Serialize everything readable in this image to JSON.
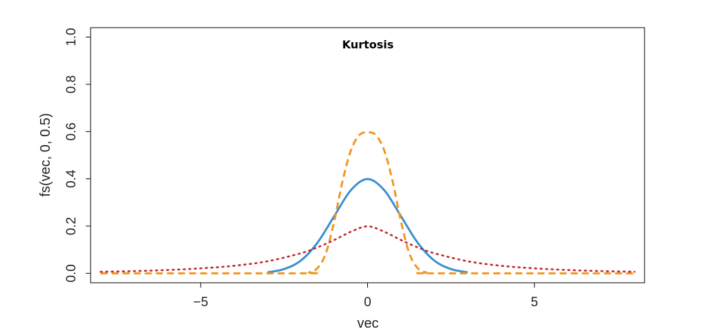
{
  "chart_data": {
    "type": "line",
    "title": "Kurtosis",
    "xlabel": "vec",
    "ylabel": "fs(vec, 0, 0.5)",
    "xlim": [
      -8.3,
      8.3
    ],
    "ylim": [
      -0.04,
      1.04
    ],
    "xticks": [
      -5,
      0,
      5
    ],
    "xtick_labels": [
      "−5",
      "0",
      "5"
    ],
    "yticks": [
      0.0,
      0.2,
      0.4,
      0.6,
      0.8,
      1.0
    ],
    "ytick_labels": [
      "0.0",
      "0.2",
      "0.4",
      "0.6",
      "0.8",
      "1.0"
    ],
    "grid": false,
    "legend": "none",
    "series": [
      {
        "color": "#3a8fcf",
        "style": "solid",
        "x": [
          -3.0,
          -2.5,
          -2.0,
          -1.5,
          -1.0,
          -0.5,
          0.0,
          0.5,
          1.0,
          1.5,
          2.0,
          2.5,
          3.0
        ],
        "y": [
          0.004,
          0.018,
          0.054,
          0.13,
          0.242,
          0.352,
          0.399,
          0.352,
          0.242,
          0.13,
          0.054,
          0.018,
          0.004
        ]
      },
      {
        "color": "#f0961f",
        "style": "dashed",
        "x": [
          -8.0,
          -2.0,
          -1.75,
          -1.5,
          -1.25,
          -1.0,
          -0.75,
          -0.5,
          -0.25,
          0.0,
          0.25,
          0.5,
          0.75,
          1.0,
          1.25,
          1.5,
          1.75,
          2.0,
          8.0
        ],
        "y": [
          0.0,
          0.0,
          0.004,
          0.022,
          0.085,
          0.22,
          0.39,
          0.52,
          0.585,
          0.597,
          0.585,
          0.52,
          0.39,
          0.22,
          0.085,
          0.022,
          0.004,
          0.0,
          0.0
        ]
      },
      {
        "color": "#c0272d",
        "style": "dotted",
        "x": [
          -8.0,
          -7.0,
          -6.0,
          -5.0,
          -4.0,
          -3.0,
          -2.0,
          -1.5,
          -1.0,
          -0.5,
          0.0,
          0.5,
          1.0,
          1.5,
          2.0,
          3.0,
          4.0,
          5.0,
          6.0,
          7.0,
          8.0
        ],
        "y": [
          0.0066,
          0.0095,
          0.014,
          0.021,
          0.032,
          0.051,
          0.085,
          0.11,
          0.141,
          0.176,
          0.199,
          0.176,
          0.141,
          0.11,
          0.085,
          0.051,
          0.032,
          0.021,
          0.014,
          0.0095,
          0.0066
        ]
      }
    ]
  }
}
